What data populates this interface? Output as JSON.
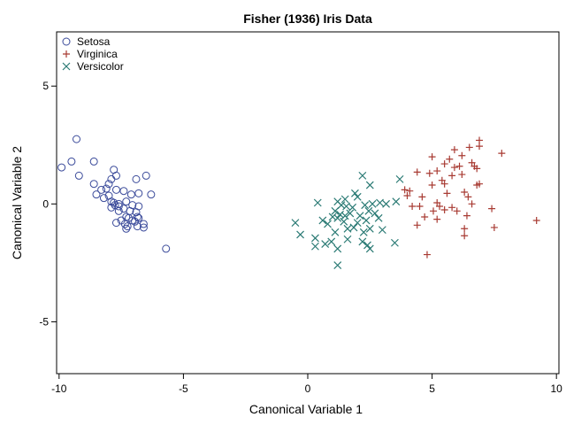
{
  "chart_data": {
    "type": "scatter",
    "title": "Fisher (1936) Iris Data",
    "xlabel": "Canonical Variable 1",
    "ylabel": "Canonical Variable 2",
    "xlim": [
      -10.1,
      10.1
    ],
    "ylim": [
      -7.2,
      7.3
    ],
    "xticks": [
      -10,
      -5,
      0,
      5,
      10
    ],
    "yticks": [
      -5,
      0,
      5
    ],
    "grid": false,
    "legend_position": "top-left",
    "series": [
      {
        "name": "Setosa",
        "marker": "circle",
        "color": "#3a4a9a",
        "points": [
          [
            -9.3,
            2.75
          ],
          [
            -9.5,
            1.8
          ],
          [
            -9.9,
            1.55
          ],
          [
            -9.2,
            1.2
          ],
          [
            -8.6,
            1.8
          ],
          [
            -7.8,
            1.45
          ],
          [
            -7.7,
            1.2
          ],
          [
            -6.9,
            1.05
          ],
          [
            -6.5,
            1.2
          ],
          [
            -8.6,
            0.85
          ],
          [
            -8.3,
            0.6
          ],
          [
            -8.1,
            0.65
          ],
          [
            -8.0,
            0.85
          ],
          [
            -7.9,
            1.05
          ],
          [
            -7.7,
            0.6
          ],
          [
            -7.4,
            0.55
          ],
          [
            -7.1,
            0.4
          ],
          [
            -6.8,
            0.45
          ],
          [
            -6.3,
            0.4
          ],
          [
            -8.5,
            0.4
          ],
          [
            -8.2,
            0.25
          ],
          [
            -8.0,
            0.35
          ],
          [
            -7.9,
            0.1
          ],
          [
            -7.6,
            0.0
          ],
          [
            -7.3,
            0.1
          ],
          [
            -7.05,
            -0.05
          ],
          [
            -6.8,
            -0.1
          ],
          [
            -7.9,
            -0.15
          ],
          [
            -7.75,
            -0.05
          ],
          [
            -7.6,
            -0.3
          ],
          [
            -7.4,
            -0.2
          ],
          [
            -7.15,
            -0.3
          ],
          [
            -6.9,
            -0.35
          ],
          [
            -7.5,
            -0.7
          ],
          [
            -7.3,
            -0.55
          ],
          [
            -7.05,
            -0.7
          ],
          [
            -6.85,
            -0.55
          ],
          [
            -7.7,
            -0.8
          ],
          [
            -7.35,
            -0.85
          ],
          [
            -7.25,
            -0.95
          ],
          [
            -6.95,
            -0.75
          ],
          [
            -6.8,
            -0.6
          ],
          [
            -6.6,
            -0.85
          ],
          [
            -7.6,
            -0.1
          ],
          [
            -7.2,
            -0.6
          ],
          [
            -6.85,
            -0.95
          ],
          [
            -6.6,
            -1.0
          ],
          [
            -7.3,
            -1.05
          ],
          [
            -5.7,
            -1.9
          ],
          [
            -7.8,
            0.05
          ]
        ]
      },
      {
        "name": "Virginica",
        "marker": "plus",
        "color": "#a83a32",
        "points": [
          [
            6.9,
            2.7
          ],
          [
            6.9,
            2.45
          ],
          [
            7.8,
            2.15
          ],
          [
            5.9,
            2.3
          ],
          [
            6.2,
            2.05
          ],
          [
            6.5,
            2.4
          ],
          [
            5.0,
            2.0
          ],
          [
            5.2,
            1.4
          ],
          [
            5.5,
            1.7
          ],
          [
            5.7,
            1.9
          ],
          [
            6.1,
            1.6
          ],
          [
            6.6,
            1.75
          ],
          [
            6.7,
            1.6
          ],
          [
            6.8,
            1.5
          ],
          [
            5.9,
            1.55
          ],
          [
            4.4,
            1.35
          ],
          [
            4.9,
            1.3
          ],
          [
            5.4,
            1.0
          ],
          [
            5.8,
            1.2
          ],
          [
            6.2,
            1.25
          ],
          [
            6.9,
            0.85
          ],
          [
            6.8,
            0.8
          ],
          [
            5.5,
            0.85
          ],
          [
            5.0,
            0.8
          ],
          [
            4.1,
            0.55
          ],
          [
            3.9,
            0.6
          ],
          [
            5.6,
            0.45
          ],
          [
            6.3,
            0.5
          ],
          [
            6.45,
            0.3
          ],
          [
            4.6,
            0.3
          ],
          [
            4.0,
            0.35
          ],
          [
            4.2,
            -0.1
          ],
          [
            4.5,
            -0.1
          ],
          [
            5.2,
            0.05
          ],
          [
            5.3,
            -0.1
          ],
          [
            5.5,
            -0.25
          ],
          [
            5.8,
            -0.15
          ],
          [
            6.6,
            0.0
          ],
          [
            6.0,
            -0.3
          ],
          [
            5.05,
            -0.3
          ],
          [
            7.4,
            -0.2
          ],
          [
            6.4,
            -0.5
          ],
          [
            4.7,
            -0.55
          ],
          [
            5.2,
            -0.65
          ],
          [
            4.4,
            -0.9
          ],
          [
            6.3,
            -1.05
          ],
          [
            7.5,
            -1.0
          ],
          [
            9.2,
            -0.7
          ],
          [
            6.3,
            -1.35
          ],
          [
            4.8,
            -2.15
          ]
        ]
      },
      {
        "name": "Versicolor",
        "marker": "x",
        "color": "#2a7a74",
        "points": [
          [
            2.2,
            1.2
          ],
          [
            3.7,
            1.05
          ],
          [
            2.5,
            0.8
          ],
          [
            1.9,
            0.45
          ],
          [
            2.0,
            0.3
          ],
          [
            1.5,
            0.2
          ],
          [
            1.2,
            0.1
          ],
          [
            0.4,
            0.05
          ],
          [
            1.35,
            -0.05
          ],
          [
            1.55,
            -0.1
          ],
          [
            1.8,
            -0.15
          ],
          [
            2.3,
            -0.05
          ],
          [
            2.6,
            0.0
          ],
          [
            2.9,
            0.05
          ],
          [
            3.15,
            0.0
          ],
          [
            3.55,
            0.1
          ],
          [
            1.1,
            -0.3
          ],
          [
            1.3,
            -0.45
          ],
          [
            1.5,
            -0.5
          ],
          [
            1.7,
            -0.4
          ],
          [
            2.1,
            -0.5
          ],
          [
            2.45,
            -0.3
          ],
          [
            2.7,
            -0.4
          ],
          [
            1.0,
            -0.55
          ],
          [
            1.2,
            -0.6
          ],
          [
            1.45,
            -0.75
          ],
          [
            2.0,
            -0.8
          ],
          [
            2.35,
            -0.7
          ],
          [
            2.85,
            -0.6
          ],
          [
            0.6,
            -0.7
          ],
          [
            0.8,
            -0.85
          ],
          [
            1.6,
            -1.05
          ],
          [
            1.85,
            -1.0
          ],
          [
            2.25,
            -1.2
          ],
          [
            2.5,
            -1.05
          ],
          [
            3.0,
            -1.1
          ],
          [
            1.1,
            -1.2
          ],
          [
            -0.5,
            -0.8
          ],
          [
            -0.3,
            -1.3
          ],
          [
            0.3,
            -1.45
          ],
          [
            0.7,
            -1.7
          ],
          [
            0.95,
            -1.6
          ],
          [
            1.6,
            -1.5
          ],
          [
            2.2,
            -1.6
          ],
          [
            2.4,
            -1.75
          ],
          [
            0.3,
            -1.8
          ],
          [
            1.2,
            -1.9
          ],
          [
            3.5,
            -1.65
          ],
          [
            1.2,
            -2.6
          ],
          [
            2.5,
            -1.9
          ]
        ]
      }
    ]
  }
}
